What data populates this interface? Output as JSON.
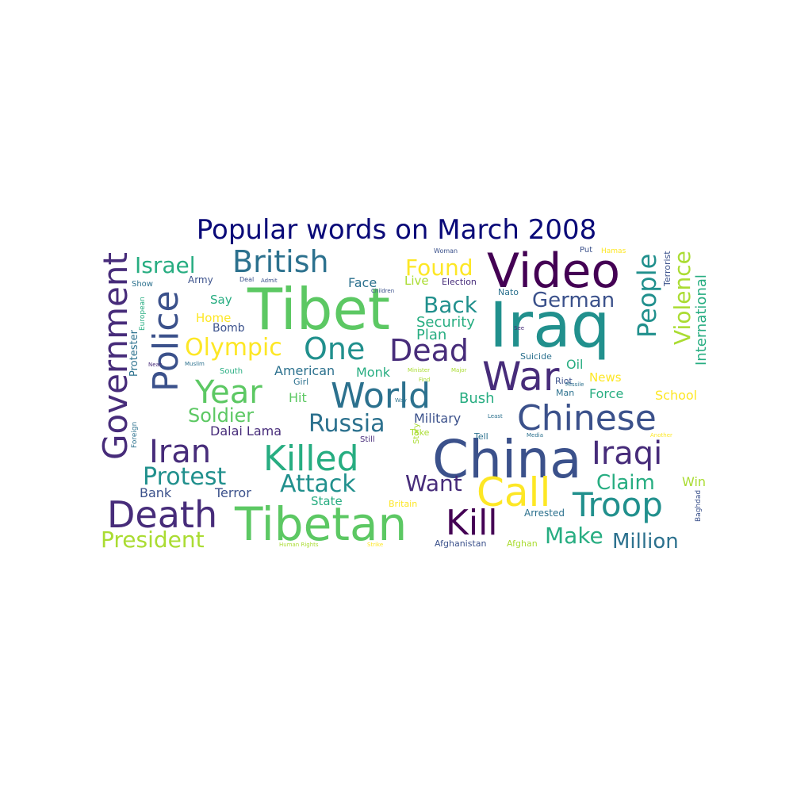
{
  "title": "Popular words on March 2008",
  "palette": {
    "v1": "#440154",
    "v2": "#472c7a",
    "v3": "#3b518b",
    "v4": "#2c718e",
    "v5": "#21908d",
    "v6": "#27ad81",
    "v7": "#5cc863",
    "v8": "#aadc32",
    "v9": "#fde725"
  },
  "words": [
    {
      "text": "Tibet",
      "color": "v7"
    },
    {
      "text": "Iraq",
      "color": "v5"
    },
    {
      "text": "China",
      "color": "v3"
    },
    {
      "text": "Tibetan",
      "color": "v7"
    },
    {
      "text": "Video",
      "color": "v1"
    },
    {
      "text": "Government",
      "color": "v2"
    },
    {
      "text": "Police",
      "color": "v3"
    },
    {
      "text": "War",
      "color": "v2"
    },
    {
      "text": "Chinese",
      "color": "v3"
    },
    {
      "text": "World",
      "color": "v4"
    },
    {
      "text": "Killed",
      "color": "v6"
    },
    {
      "text": "Death",
      "color": "v2"
    },
    {
      "text": "Call",
      "color": "v9"
    },
    {
      "text": "Troop",
      "color": "v5"
    },
    {
      "text": "Kill",
      "color": "v1"
    },
    {
      "text": "Iran",
      "color": "v2"
    },
    {
      "text": "Iraqi",
      "color": "v2"
    },
    {
      "text": "People",
      "color": "v5"
    },
    {
      "text": "British",
      "color": "v4"
    },
    {
      "text": "One",
      "color": "v5"
    },
    {
      "text": "Dead",
      "color": "v2"
    },
    {
      "text": "Year",
      "color": "v7"
    },
    {
      "text": "Violence",
      "color": "v8"
    },
    {
      "text": "Protest",
      "color": "v5"
    },
    {
      "text": "Attack",
      "color": "v5"
    },
    {
      "text": "Want",
      "color": "v2"
    },
    {
      "text": "Russia",
      "color": "v4"
    },
    {
      "text": "Olympic",
      "color": "v9"
    },
    {
      "text": "Israel",
      "color": "v6"
    },
    {
      "text": "Found",
      "color": "v9"
    },
    {
      "text": "Back",
      "color": "v5"
    },
    {
      "text": "German",
      "color": "v3"
    },
    {
      "text": "President",
      "color": "v8"
    },
    {
      "text": "Make",
      "color": "v6"
    },
    {
      "text": "Million",
      "color": "v4"
    },
    {
      "text": "Claim",
      "color": "v6"
    },
    {
      "text": "Soldier",
      "color": "v7"
    },
    {
      "text": "International",
      "color": "v6"
    },
    {
      "text": "Security",
      "color": "v6"
    },
    {
      "text": "Plan",
      "color": "v6"
    },
    {
      "text": "Dalai Lama",
      "color": "v2"
    },
    {
      "text": "American",
      "color": "v4"
    },
    {
      "text": "Military",
      "color": "v3"
    },
    {
      "text": "Bush",
      "color": "v6"
    },
    {
      "text": "Monk",
      "color": "v6"
    },
    {
      "text": "Hit",
      "color": "v7"
    },
    {
      "text": "Terror",
      "color": "v3"
    },
    {
      "text": "Bank",
      "color": "v3"
    },
    {
      "text": "State",
      "color": "v6"
    },
    {
      "text": "Force",
      "color": "v6"
    },
    {
      "text": "School",
      "color": "v9"
    },
    {
      "text": "News",
      "color": "v9"
    },
    {
      "text": "Oil",
      "color": "v6"
    },
    {
      "text": "Win",
      "color": "v8"
    },
    {
      "text": "Say",
      "color": "v6"
    },
    {
      "text": "Home",
      "color": "v9"
    },
    {
      "text": "Bomb",
      "color": "v3"
    },
    {
      "text": "Face",
      "color": "v4"
    },
    {
      "text": "Live",
      "color": "v8"
    },
    {
      "text": "Army",
      "color": "v3"
    },
    {
      "text": "Protester",
      "color": "v4"
    },
    {
      "text": "Terrorist",
      "color": "v3"
    },
    {
      "text": "Arrested",
      "color": "v4"
    },
    {
      "text": "Afghanistan",
      "color": "v3"
    },
    {
      "text": "Afghan",
      "color": "v8"
    },
    {
      "text": "Girl",
      "color": "v4"
    },
    {
      "text": "Riot",
      "color": "v3"
    },
    {
      "text": "Man",
      "color": "v4"
    },
    {
      "text": "Britain",
      "color": "v9"
    },
    {
      "text": "Story",
      "color": "v8"
    },
    {
      "text": "Take",
      "color": "v8"
    },
    {
      "text": "Tell",
      "color": "v4"
    },
    {
      "text": "Still",
      "color": "v2"
    },
    {
      "text": "Suicide",
      "color": "v4"
    },
    {
      "text": "Nato",
      "color": "v4"
    },
    {
      "text": "Election",
      "color": "v2"
    },
    {
      "text": "Show",
      "color": "v4"
    },
    {
      "text": "European",
      "color": "v6"
    },
    {
      "text": "Foreign",
      "color": "v4"
    },
    {
      "text": "Put",
      "color": "v3"
    },
    {
      "text": "Hamas",
      "color": "v9"
    },
    {
      "text": "Woman",
      "color": "v3"
    },
    {
      "text": "Baghdad",
      "color": "v3"
    },
    {
      "text": "South",
      "color": "v6"
    },
    {
      "text": "Deal",
      "color": "v3"
    },
    {
      "text": "Admit",
      "color": "v3"
    },
    {
      "text": "Children",
      "color": "v3"
    },
    {
      "text": "Near",
      "color": "v2"
    },
    {
      "text": "Muslim",
      "color": "v4"
    },
    {
      "text": "Minister",
      "color": "v8"
    },
    {
      "text": "Major",
      "color": "v8"
    },
    {
      "text": "Find",
      "color": "v8"
    },
    {
      "text": "Missile",
      "color": "v4"
    },
    {
      "text": "Way",
      "color": "v4"
    },
    {
      "text": "Least",
      "color": "v4"
    },
    {
      "text": "Media",
      "color": "v4"
    },
    {
      "text": "Another",
      "color": "v9"
    },
    {
      "text": "Human Rights",
      "color": "v8"
    },
    {
      "text": "Strike",
      "color": "v9"
    },
    {
      "text": "See",
      "color": "v2"
    }
  ]
}
